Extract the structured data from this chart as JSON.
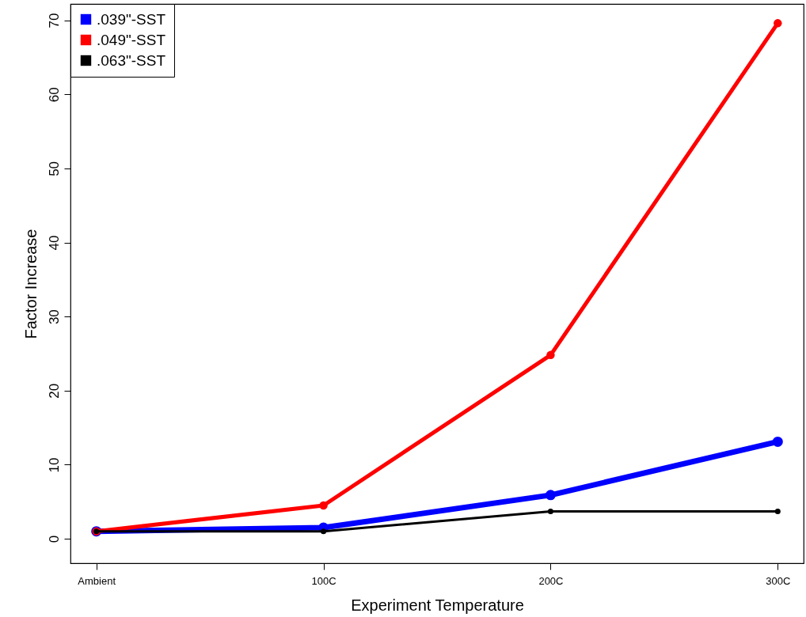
{
  "chart_data": {
    "type": "line",
    "xlabel": "Experiment Temperature",
    "ylabel": "Factor Increase",
    "categories": [
      "Ambient",
      "100C",
      "200C",
      "300C"
    ],
    "series": [
      {
        "name": ".039\"-SST",
        "color": "#0000ff",
        "values": [
          1,
          1.5,
          5.9,
          13.1
        ]
      },
      {
        "name": ".049\"-SST",
        "color": "#ff0000",
        "values": [
          1,
          4.5,
          24.8,
          69.6
        ]
      },
      {
        "name": ".063\"-SST",
        "color": "#000000",
        "values": [
          1,
          1,
          3.7,
          3.7
        ]
      }
    ],
    "ylim": [
      -3.3,
      72.2
    ],
    "yticks": [
      0,
      10,
      20,
      30,
      40,
      50,
      60,
      70
    ],
    "grid": false,
    "legend": "top left",
    "marker": "circle",
    "line_style": "solid"
  }
}
